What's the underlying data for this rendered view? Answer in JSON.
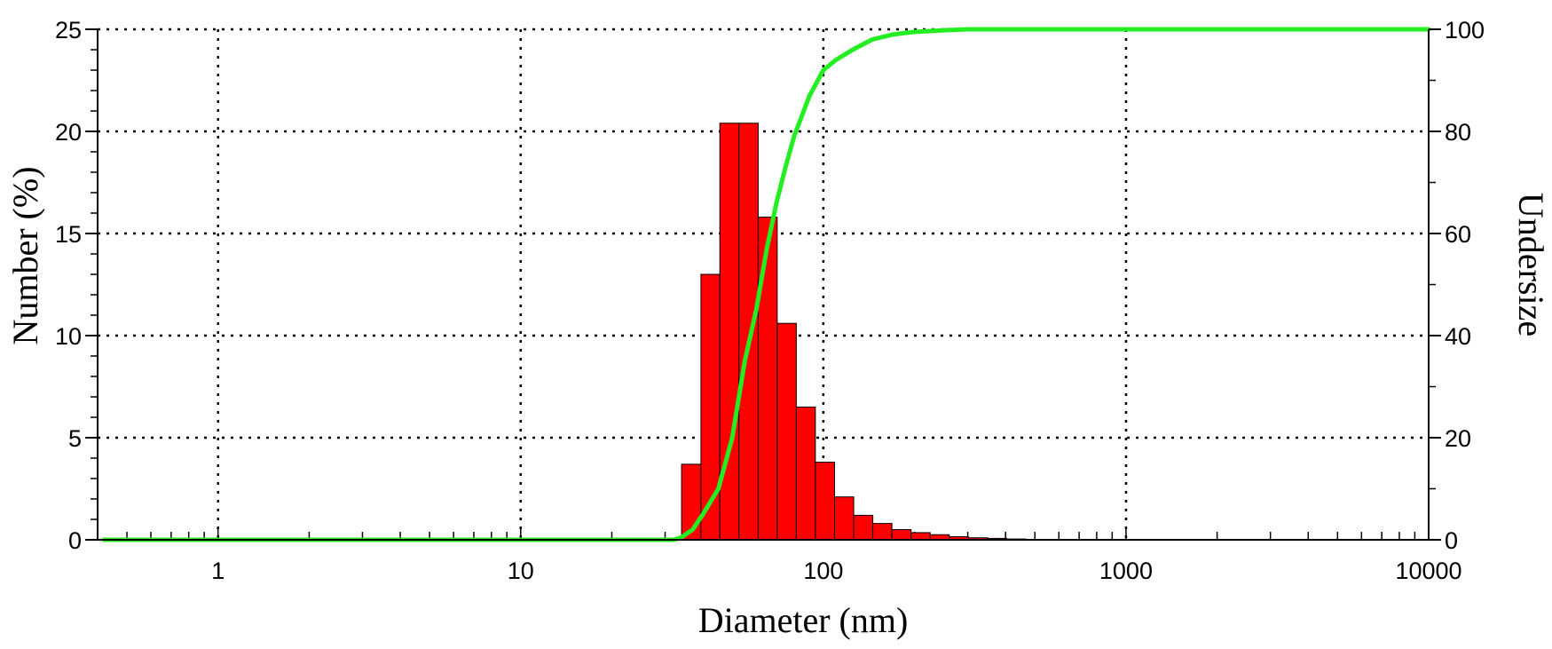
{
  "chart_data": {
    "type": "bar",
    "title": "",
    "xlabel": "Diameter (nm)",
    "ylabel": "Number (%)",
    "y2label": "Undersize",
    "x_scale": "log",
    "xlim": [
      0.4,
      10000
    ],
    "ylim": [
      0,
      25
    ],
    "y2lim": [
      0,
      100
    ],
    "x_ticks": [
      1,
      10,
      100,
      1000,
      10000
    ],
    "x_tick_labels": [
      "1",
      "10",
      "100",
      "1000",
      "10000"
    ],
    "y_ticks": [
      0,
      5,
      10,
      15,
      20,
      25
    ],
    "y_tick_labels": [
      "0",
      "5",
      "10",
      "15",
      "20",
      "25"
    ],
    "y2_ticks": [
      0,
      20,
      40,
      60,
      80,
      100
    ],
    "y2_tick_labels": [
      "0",
      "20",
      "40",
      "60",
      "80",
      "100"
    ],
    "grid": true,
    "legend": "none",
    "bar_color": "#ff0000",
    "line_color": "#22ee22",
    "bins": [
      {
        "x0": 34.0,
        "x1": 39.4,
        "value": 3.7
      },
      {
        "x0": 39.4,
        "x1": 45.5,
        "value": 13.0
      },
      {
        "x0": 45.5,
        "x1": 52.6,
        "value": 20.4
      },
      {
        "x0": 52.6,
        "x1": 60.9,
        "value": 20.4
      },
      {
        "x0": 60.9,
        "x1": 70.4,
        "value": 15.8
      },
      {
        "x0": 70.4,
        "x1": 81.4,
        "value": 10.6
      },
      {
        "x0": 81.4,
        "x1": 94.1,
        "value": 6.5
      },
      {
        "x0": 94.1,
        "x1": 108.9,
        "value": 3.8
      },
      {
        "x0": 108.9,
        "x1": 126.0,
        "value": 2.1
      },
      {
        "x0": 126.0,
        "x1": 145.7,
        "value": 1.2
      },
      {
        "x0": 145.7,
        "x1": 168.5,
        "value": 0.8
      },
      {
        "x0": 168.5,
        "x1": 194.9,
        "value": 0.5
      },
      {
        "x0": 194.9,
        "x1": 225.4,
        "value": 0.35
      },
      {
        "x0": 225.4,
        "x1": 260.7,
        "value": 0.25
      },
      {
        "x0": 260.7,
        "x1": 301.5,
        "value": 0.15
      },
      {
        "x0": 301.5,
        "x1": 348.7,
        "value": 0.1
      },
      {
        "x0": 348.7,
        "x1": 403.3,
        "value": 0.07
      },
      {
        "x0": 403.3,
        "x1": 466.5,
        "value": 0.04
      }
    ],
    "series": [
      {
        "type": "line",
        "axis": "right",
        "x": [
          0.42,
          32,
          34,
          37,
          40,
          45,
          50,
          55,
          60,
          65,
          70,
          75,
          80,
          90,
          100,
          110,
          125,
          145,
          170,
          200,
          250,
          300,
          400,
          500,
          1000,
          10000
        ],
        "values": [
          0,
          0,
          0.5,
          2,
          5,
          10,
          20,
          35,
          45,
          57,
          66,
          73,
          79,
          87,
          92,
          94,
          96,
          98,
          99,
          99.5,
          99.8,
          100,
          100,
          100,
          100,
          100
        ]
      }
    ]
  }
}
